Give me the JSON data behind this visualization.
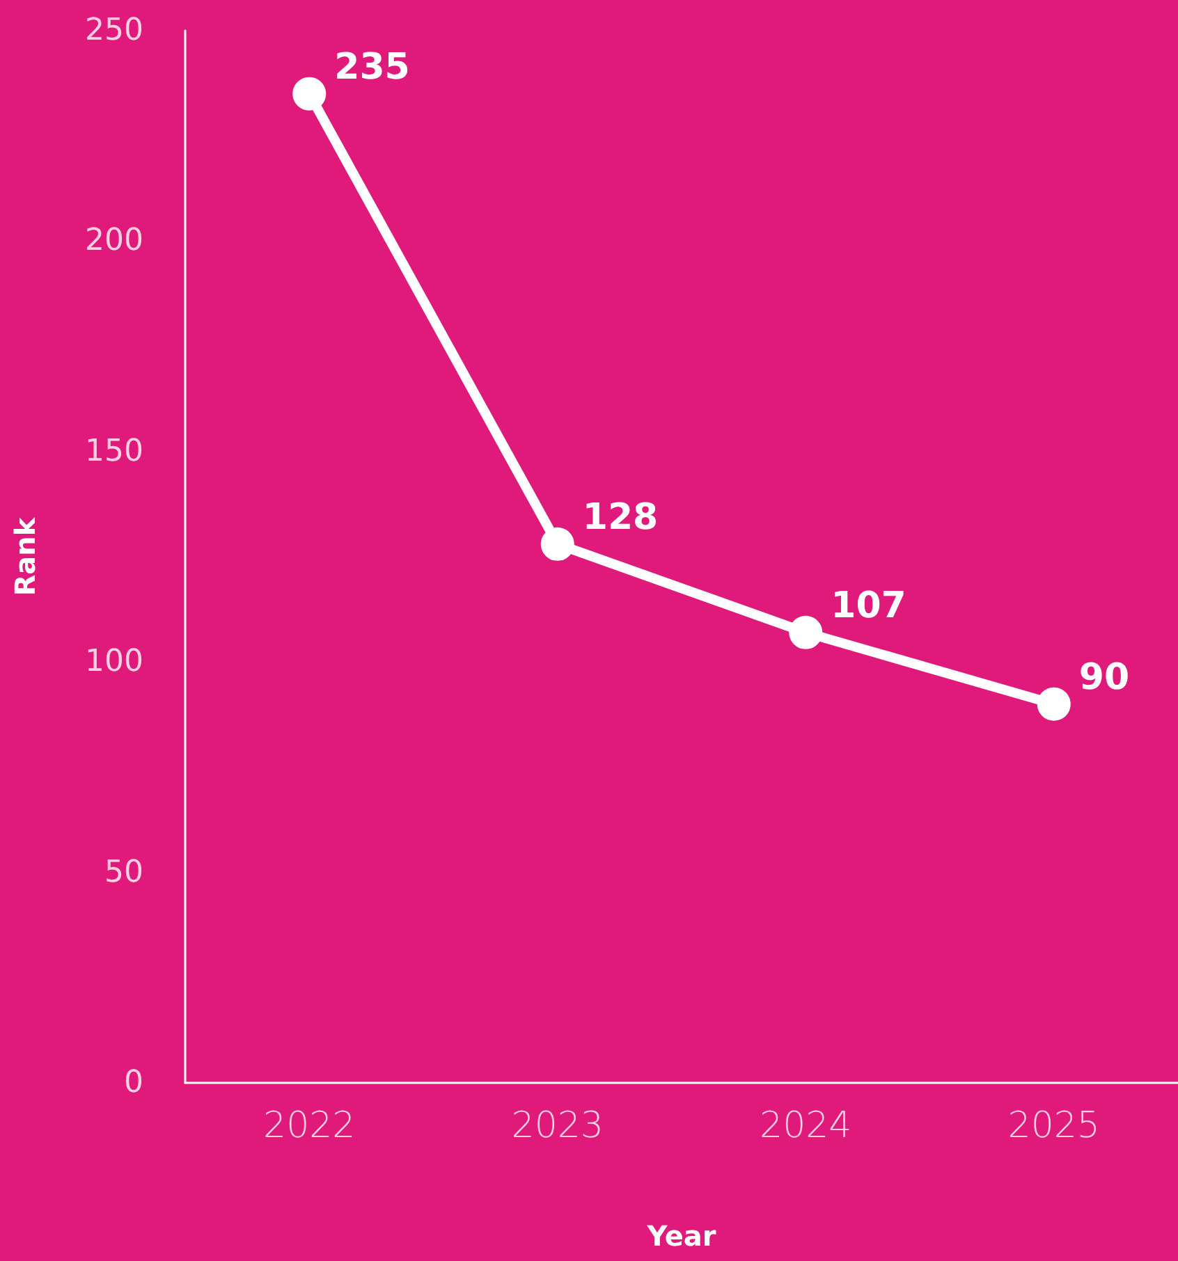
{
  "chart_data": {
    "type": "line",
    "xlabel": "Year",
    "ylabel": "Rank",
    "categories": [
      "2022",
      "2023",
      "2024",
      "2025"
    ],
    "series": [
      {
        "color": "#ffffff",
        "values": [
          235,
          128,
          107,
          90
        ]
      }
    ],
    "ylim": [
      0,
      250
    ],
    "yticks": [
      0,
      50,
      100,
      150,
      200,
      250
    ],
    "data_labels": true,
    "marker": "circle",
    "line_style": "solid"
  }
}
